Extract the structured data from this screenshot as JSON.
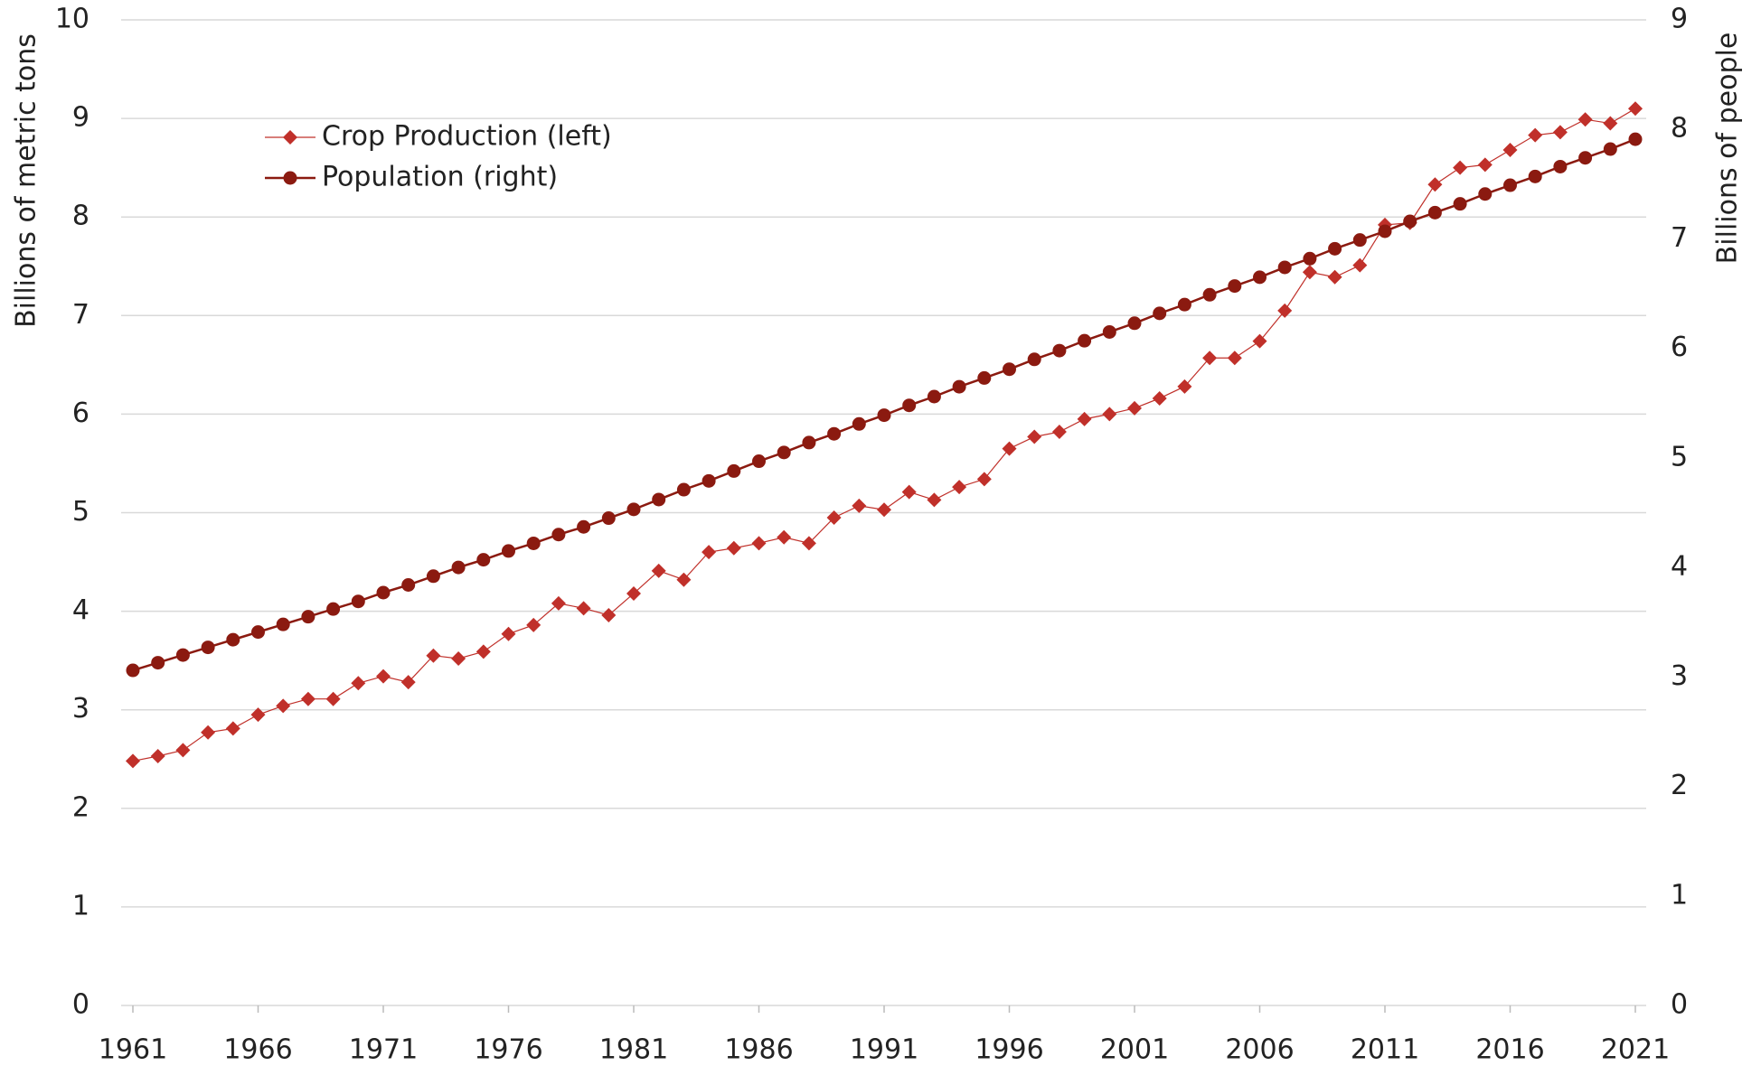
{
  "chart_data": {
    "type": "line",
    "x": [
      1961,
      1962,
      1963,
      1964,
      1965,
      1966,
      1967,
      1968,
      1969,
      1970,
      1971,
      1972,
      1973,
      1974,
      1975,
      1976,
      1977,
      1978,
      1979,
      1980,
      1981,
      1982,
      1983,
      1984,
      1985,
      1986,
      1987,
      1988,
      1989,
      1990,
      1991,
      1992,
      1993,
      1994,
      1995,
      1996,
      1997,
      1998,
      1999,
      2000,
      2001,
      2002,
      2003,
      2004,
      2005,
      2006,
      2007,
      2008,
      2009,
      2010,
      2011,
      2012,
      2013,
      2014,
      2015,
      2016,
      2017,
      2018,
      2019,
      2020,
      2021
    ],
    "xlim": [
      1961,
      2021
    ],
    "xticks": [
      1961,
      1966,
      1971,
      1976,
      1981,
      1986,
      1991,
      1996,
      2001,
      2006,
      2011,
      2016,
      2021
    ],
    "ylabel": "Billions of metric tons",
    "y2label": "Billions of people",
    "ylim": [
      0,
      10
    ],
    "yticks": [
      0,
      1,
      2,
      3,
      4,
      5,
      6,
      7,
      8,
      9,
      10
    ],
    "y2lim": [
      0,
      9
    ],
    "y2ticks": [
      0,
      1,
      2,
      3,
      4,
      5,
      6,
      7,
      8,
      9
    ],
    "grid": true,
    "legend": "upper left",
    "series": [
      {
        "name": "Crop Production (left)",
        "color": "#c0302a",
        "marker": "diamond",
        "axis": "y",
        "values": [
          2.48,
          2.53,
          2.59,
          2.77,
          2.81,
          2.95,
          3.04,
          3.11,
          3.11,
          3.27,
          3.34,
          3.28,
          3.55,
          3.52,
          3.59,
          3.77,
          3.86,
          4.08,
          4.03,
          3.96,
          4.18,
          4.41,
          4.32,
          4.6,
          4.64,
          4.69,
          4.75,
          4.69,
          4.95,
          5.07,
          5.03,
          5.21,
          5.13,
          5.26,
          5.34,
          5.65,
          5.77,
          5.82,
          5.95,
          6.0,
          6.06,
          6.16,
          6.28,
          6.57,
          6.57,
          6.74,
          7.05,
          7.44,
          7.39,
          7.51,
          7.92,
          7.94,
          8.33,
          8.5,
          8.53,
          8.68,
          8.83,
          8.86,
          8.99,
          8.95,
          9.1
        ]
      },
      {
        "name": "Population (right)",
        "color": "#8b1a10",
        "marker": "circle",
        "axis": "y2",
        "values": [
          3.06,
          3.13,
          3.2,
          3.27,
          3.34,
          3.41,
          3.48,
          3.55,
          3.62,
          3.69,
          3.77,
          3.84,
          3.92,
          4.0,
          4.07,
          4.15,
          4.22,
          4.3,
          4.37,
          4.45,
          4.53,
          4.62,
          4.71,
          4.79,
          4.88,
          4.97,
          5.05,
          5.14,
          5.22,
          5.31,
          5.39,
          5.48,
          5.56,
          5.65,
          5.73,
          5.81,
          5.9,
          5.98,
          6.07,
          6.15,
          6.23,
          6.32,
          6.4,
          6.49,
          6.57,
          6.65,
          6.74,
          6.82,
          6.91,
          6.99,
          7.07,
          7.16,
          7.24,
          7.32,
          7.41,
          7.49,
          7.57,
          7.66,
          7.74,
          7.82,
          7.91
        ]
      }
    ]
  }
}
